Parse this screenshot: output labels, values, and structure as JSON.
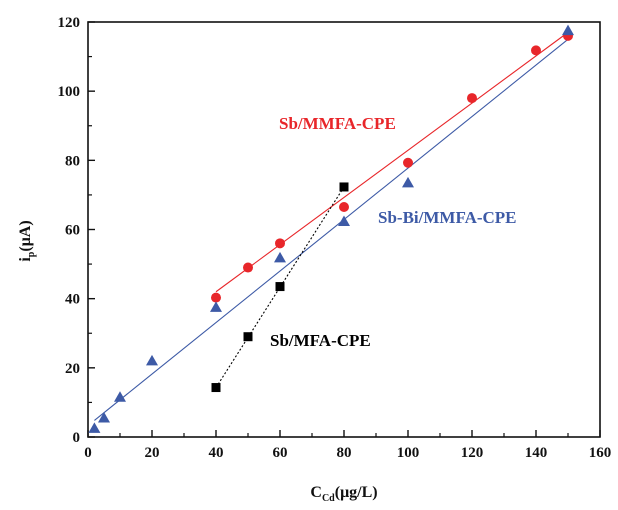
{
  "chart_data": {
    "type": "scatter",
    "xlabel_main": "C",
    "xlabel_sub": "Cd",
    "xlabel_rest": "(μg/L)",
    "ylabel_main": "i",
    "ylabel_sub": "p",
    "ylabel_rest": "(μA)",
    "xlim": [
      0,
      160
    ],
    "ylim": [
      0,
      120
    ],
    "xticks": [
      0,
      20,
      40,
      60,
      80,
      100,
      120,
      140,
      160
    ],
    "yticks": [
      0,
      20,
      40,
      60,
      80,
      100,
      120
    ],
    "grid": false,
    "series": [
      {
        "name": "Sb/MMFA-CPE",
        "marker": "circle",
        "color": "#e8262a",
        "x": [
          40,
          50,
          60,
          80,
          100,
          120,
          140,
          150
        ],
        "y": [
          40.3,
          49.0,
          56.0,
          66.5,
          79.3,
          98.0,
          111.8,
          116.0
        ],
        "fit": {
          "x": [
            40,
            150
          ],
          "y": [
            42.0,
            117.0
          ]
        }
      },
      {
        "name": "Sb-Bi/MMFA-CPE",
        "marker": "triangle",
        "color": "#3d5aa6",
        "x": [
          2,
          5,
          10,
          20,
          40,
          60,
          80,
          100,
          150
        ],
        "y": [
          2.5,
          5.5,
          11.5,
          22.0,
          37.5,
          51.8,
          62.3,
          73.5,
          117.5
        ],
        "fit": {
          "x": [
            2,
            150
          ],
          "y": [
            4.8,
            115.0
          ]
        }
      },
      {
        "name": "Sb/MFA-CPE",
        "marker": "square",
        "color": "#000000",
        "x": [
          40,
          50,
          60,
          80
        ],
        "y": [
          14.3,
          29.0,
          43.5,
          72.3
        ],
        "fit": {
          "x": [
            40,
            80
          ],
          "y": [
            14.3,
            72.3
          ]
        }
      }
    ]
  }
}
